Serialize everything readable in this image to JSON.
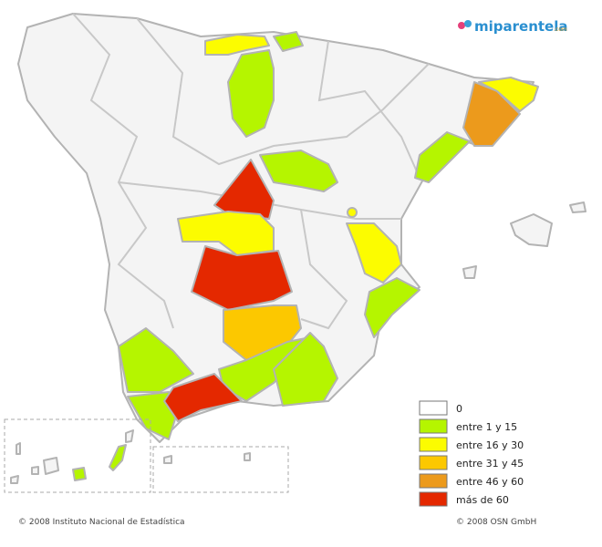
{
  "logo": {
    "name": "miparentela",
    "suffix": ".com"
  },
  "legend": [
    {
      "label": "0",
      "color": "#ffffff"
    },
    {
      "label": "entre 1 y 15",
      "color": "#b5f500"
    },
    {
      "label": "entre 16 y 30",
      "color": "#fcfc00"
    },
    {
      "label": "entre 31 y 45",
      "color": "#fcc800"
    },
    {
      "label": "entre 46 y 60",
      "color": "#ec9a1c"
    },
    {
      "label": "más de 60",
      "color": "#e42800"
    }
  ],
  "footer": {
    "left": "© 2008 Instituto Nacional de Estadística",
    "right": "© 2008 OSN GmbH"
  }
}
